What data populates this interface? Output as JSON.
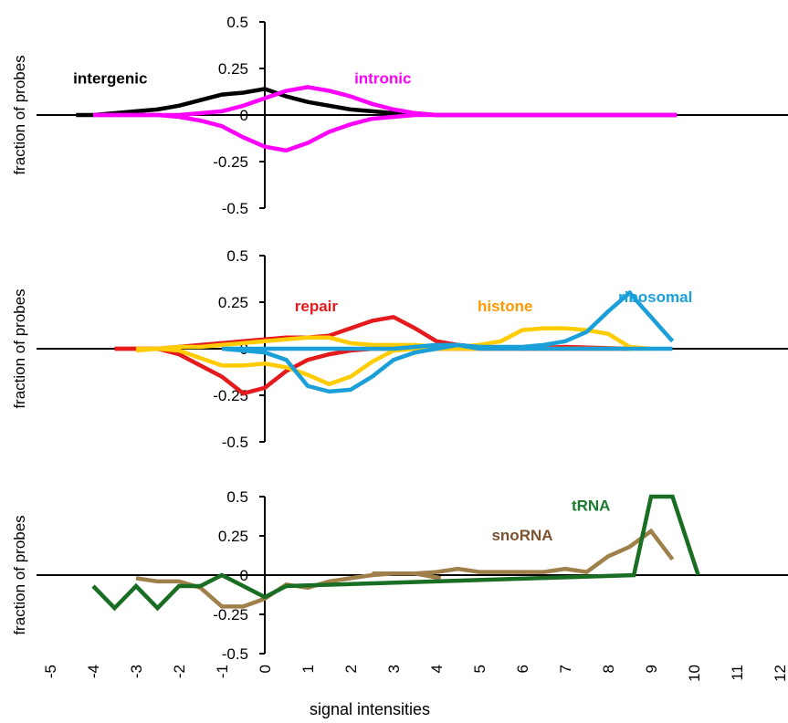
{
  "chart_data": [
    {
      "type": "line",
      "ylabel": "fraction of probes",
      "ylim": [
        -0.5,
        0.5
      ],
      "yticks": [
        {
          "v": 0.5,
          "label": "0.5"
        },
        {
          "v": 0.25,
          "label": "0.25"
        },
        {
          "v": 0,
          "label": "0"
        },
        {
          "v": -0.25,
          "label": "-0.25"
        },
        {
          "v": -0.5,
          "label": "-0.5"
        }
      ],
      "annotations": [
        {
          "text": "intergenic",
          "color": "#000000",
          "x": -3.6,
          "y": 0.17
        },
        {
          "text": "intronic",
          "color": "#ff00ff",
          "x": 2.75,
          "y": 0.17
        }
      ],
      "series": [
        {
          "name": "intergenic",
          "color": "#000000",
          "points": [
            [
              -4.4,
              0
            ],
            [
              -4,
              0
            ],
            [
              -3.5,
              0.01
            ],
            [
              -3,
              0.02
            ],
            [
              -2.5,
              0.03
            ],
            [
              -2,
              0.05
            ],
            [
              -1.5,
              0.08
            ],
            [
              -1,
              0.11
            ],
            [
              -0.5,
              0.12
            ],
            [
              0,
              0.14
            ],
            [
              0.5,
              0.1
            ],
            [
              1,
              0.07
            ],
            [
              1.5,
              0.05
            ],
            [
              2,
              0.03
            ],
            [
              2.5,
              0.02
            ],
            [
              3,
              0.01
            ],
            [
              3.5,
              0.01
            ],
            [
              4,
              0
            ],
            [
              5,
              0
            ],
            [
              6,
              0
            ],
            [
              7,
              0
            ],
            [
              8,
              0
            ],
            [
              9,
              0
            ],
            [
              9.6,
              0
            ]
          ]
        },
        {
          "name": "intronic (+)",
          "color": "#ff00ff",
          "points": [
            [
              -4,
              0
            ],
            [
              -3.5,
              0
            ],
            [
              -3,
              0
            ],
            [
              -2.5,
              0
            ],
            [
              -2,
              0
            ],
            [
              -1.5,
              0.01
            ],
            [
              -1,
              0.02
            ],
            [
              -0.5,
              0.05
            ],
            [
              0,
              0.09
            ],
            [
              0.5,
              0.13
            ],
            [
              1,
              0.15
            ],
            [
              1.5,
              0.13
            ],
            [
              2,
              0.1
            ],
            [
              2.5,
              0.06
            ],
            [
              3,
              0.03
            ],
            [
              3.5,
              0.01
            ],
            [
              4,
              0
            ],
            [
              5,
              0
            ],
            [
              6,
              0
            ],
            [
              7,
              0
            ],
            [
              8,
              0
            ],
            [
              9,
              0
            ],
            [
              9.6,
              0
            ]
          ]
        },
        {
          "name": "intronic (-)",
          "color": "#ff00ff",
          "points": [
            [
              -4,
              0
            ],
            [
              -3.5,
              0
            ],
            [
              -3,
              0
            ],
            [
              -2.5,
              0
            ],
            [
              -2,
              -0.01
            ],
            [
              -1.5,
              -0.03
            ],
            [
              -1,
              -0.06
            ],
            [
              -0.5,
              -0.12
            ],
            [
              0,
              -0.17
            ],
            [
              0.5,
              -0.19
            ],
            [
              1,
              -0.15
            ],
            [
              1.5,
              -0.09
            ],
            [
              2,
              -0.05
            ],
            [
              2.5,
              -0.02
            ],
            [
              3,
              -0.01
            ],
            [
              3.5,
              0
            ],
            [
              4,
              0
            ],
            [
              5,
              0
            ],
            [
              6,
              0
            ],
            [
              7,
              0
            ],
            [
              8,
              0
            ],
            [
              9,
              0
            ],
            [
              9.6,
              0
            ]
          ]
        }
      ]
    },
    {
      "type": "line",
      "ylabel": "fraction of probes",
      "ylim": [
        -0.5,
        0.5
      ],
      "yticks": [
        {
          "v": 0.5,
          "label": "0.5"
        },
        {
          "v": 0.25,
          "label": "0.25"
        },
        {
          "v": 0,
          "label": "0"
        },
        {
          "v": -0.25,
          "label": "-0.25"
        },
        {
          "v": -0.5,
          "label": "-0.5"
        }
      ],
      "annotations": [
        {
          "text": "repair",
          "color": "#e41a1c",
          "x": 1.2,
          "y": 0.2
        },
        {
          "text": "histone",
          "color": "#ff9900",
          "x": 5.6,
          "y": 0.2
        },
        {
          "text": "ribosomal",
          "color": "#1a9fd9",
          "x": 9.1,
          "y": 0.25
        }
      ],
      "series": [
        {
          "name": "repair (+)",
          "color": "#e41a1c",
          "points": [
            [
              -3.5,
              0
            ],
            [
              -3,
              0
            ],
            [
              -2.5,
              0
            ],
            [
              -2,
              0.01
            ],
            [
              -1.5,
              0.02
            ],
            [
              -1,
              0.03
            ],
            [
              -0.5,
              0.04
            ],
            [
              0,
              0.05
            ],
            [
              0.5,
              0.06
            ],
            [
              1,
              0.06
            ],
            [
              1.5,
              0.07
            ],
            [
              2,
              0.11
            ],
            [
              2.5,
              0.15
            ],
            [
              3,
              0.17
            ],
            [
              3.5,
              0.11
            ],
            [
              4,
              0.04
            ],
            [
              4.5,
              0.02
            ],
            [
              5,
              0.01
            ],
            [
              6,
              0
            ],
            [
              7,
              0.01
            ],
            [
              8.5,
              0
            ]
          ]
        },
        {
          "name": "repair (-)",
          "color": "#e41a1c",
          "points": [
            [
              -3.5,
              0
            ],
            [
              -3,
              0
            ],
            [
              -2.5,
              0
            ],
            [
              -2,
              -0.03
            ],
            [
              -1.5,
              -0.09
            ],
            [
              -1,
              -0.15
            ],
            [
              -0.5,
              -0.24
            ],
            [
              0,
              -0.21
            ],
            [
              0.5,
              -0.12
            ],
            [
              1,
              -0.06
            ],
            [
              1.5,
              -0.03
            ],
            [
              2,
              -0.01
            ],
            [
              2.5,
              0
            ],
            [
              3,
              0
            ],
            [
              4,
              0
            ],
            [
              5,
              0
            ],
            [
              6,
              0
            ],
            [
              7,
              0
            ],
            [
              8.5,
              0
            ]
          ]
        },
        {
          "name": "histone (+)",
          "color": "#ffcc00",
          "points": [
            [
              -3,
              -0.01
            ],
            [
              -2.5,
              0
            ],
            [
              -2,
              0.01
            ],
            [
              -1.5,
              0.01
            ],
            [
              -1,
              0.02
            ],
            [
              -0.5,
              0.03
            ],
            [
              0,
              0.04
            ],
            [
              0.5,
              0.05
            ],
            [
              1,
              0.06
            ],
            [
              1.5,
              0.06
            ],
            [
              2,
              0.03
            ],
            [
              2.5,
              0.02
            ],
            [
              3,
              0.02
            ],
            [
              3.5,
              0.02
            ],
            [
              4,
              0.01
            ],
            [
              4.5,
              0.01
            ],
            [
              5,
              0.02
            ],
            [
              5.5,
              0.04
            ],
            [
              6,
              0.1
            ],
            [
              6.5,
              0.11
            ],
            [
              7,
              0.11
            ],
            [
              7.5,
              0.1
            ],
            [
              8,
              0.08
            ],
            [
              8.5,
              0.01
            ],
            [
              9,
              0
            ]
          ]
        },
        {
          "name": "histone (-)",
          "color": "#ffcc00",
          "points": [
            [
              -3,
              0
            ],
            [
              -2.5,
              0
            ],
            [
              -2,
              -0.01
            ],
            [
              -1.5,
              -0.05
            ],
            [
              -1,
              -0.09
            ],
            [
              -0.5,
              -0.09
            ],
            [
              0,
              -0.08
            ],
            [
              0.5,
              -0.1
            ],
            [
              1,
              -0.14
            ],
            [
              1.5,
              -0.19
            ],
            [
              2,
              -0.15
            ],
            [
              2.5,
              -0.07
            ],
            [
              3,
              -0.01
            ],
            [
              3.5,
              0
            ],
            [
              4,
              0
            ],
            [
              5,
              0
            ],
            [
              6,
              0
            ],
            [
              7,
              0
            ],
            [
              8,
              0
            ],
            [
              9,
              0
            ]
          ]
        },
        {
          "name": "ribosomal (+)",
          "color": "#1a9fd9",
          "points": [
            [
              -1,
              0
            ],
            [
              0,
              0
            ],
            [
              1,
              0
            ],
            [
              2,
              0
            ],
            [
              3,
              0
            ],
            [
              3.5,
              0.01
            ],
            [
              4,
              0.02
            ],
            [
              4.5,
              0.02
            ],
            [
              5,
              0.01
            ],
            [
              5.5,
              0.01
            ],
            [
              6,
              0.01
            ],
            [
              6.5,
              0.02
            ],
            [
              7,
              0.04
            ],
            [
              7.5,
              0.09
            ],
            [
              8,
              0.2
            ],
            [
              8.5,
              0.3
            ],
            [
              9,
              0.17
            ],
            [
              9.5,
              0.04
            ]
          ]
        },
        {
          "name": "ribosomal (-)",
          "color": "#1a9fd9",
          "points": [
            [
              -1,
              0
            ],
            [
              -0.5,
              -0.01
            ],
            [
              0,
              -0.02
            ],
            [
              0.5,
              -0.06
            ],
            [
              1,
              -0.2
            ],
            [
              1.5,
              -0.23
            ],
            [
              2,
              -0.22
            ],
            [
              2.5,
              -0.15
            ],
            [
              3,
              -0.06
            ],
            [
              3.5,
              -0.02
            ],
            [
              4,
              0
            ],
            [
              4.5,
              0.02
            ],
            [
              5,
              0
            ],
            [
              6,
              0
            ],
            [
              7,
              0
            ],
            [
              8,
              0
            ],
            [
              9,
              0
            ],
            [
              9.5,
              0
            ]
          ]
        }
      ]
    },
    {
      "type": "line",
      "ylabel": "fraction of probes",
      "ylim": [
        -0.5,
        0.5
      ],
      "yticks": [
        {
          "v": 0.5,
          "label": "0.5"
        },
        {
          "v": 0.25,
          "label": "0.25"
        },
        {
          "v": 0,
          "label": "0"
        },
        {
          "v": -0.25,
          "label": "-0.25"
        },
        {
          "v": -0.5,
          "label": "-0.5"
        }
      ],
      "annotations": [
        {
          "text": "tRNA",
          "color": "#1a7a2e",
          "x": 7.6,
          "y": 0.41
        },
        {
          "text": "snoRNA",
          "color": "#7a5230",
          "x": 6.0,
          "y": 0.22
        }
      ],
      "series": [
        {
          "name": "snoRNA",
          "color": "#a0804a",
          "points": [
            [
              -3,
              -0.02
            ],
            [
              -2.5,
              -0.04
            ],
            [
              -2,
              -0.04
            ],
            [
              -1.5,
              -0.08
            ],
            [
              -1,
              -0.2
            ],
            [
              -0.5,
              -0.2
            ],
            [
              0,
              -0.15
            ],
            [
              0.5,
              -0.06
            ],
            [
              1,
              -0.08
            ],
            [
              1.5,
              -0.04
            ],
            [
              2,
              -0.02
            ],
            [
              2.5,
              0
            ],
            [
              3,
              0.01
            ],
            [
              3.5,
              0.01
            ],
            [
              4,
              0.02
            ],
            [
              4.5,
              0.04
            ],
            [
              5,
              0.02
            ],
            [
              5.5,
              0.02
            ],
            [
              6,
              0.02
            ],
            [
              6.5,
              0.02
            ],
            [
              7,
              0.04
            ],
            [
              7.5,
              0.02
            ],
            [
              8,
              0.12
            ],
            [
              8.5,
              0.18
            ],
            [
              9,
              0.28
            ],
            [
              9.5,
              0.1
            ]
          ]
        },
        {
          "name": "snoRNA tail",
          "color": "#a0804a",
          "points": [
            [
              2.5,
              0.01
            ],
            [
              3,
              0.01
            ],
            [
              3.5,
              0.01
            ],
            [
              4.1,
              -0.02
            ]
          ]
        },
        {
          "name": "tRNA",
          "color": "#1a6e23",
          "points": [
            [
              -4,
              -0.07
            ],
            [
              -3.5,
              -0.21
            ],
            [
              -3,
              -0.07
            ],
            [
              -2.5,
              -0.21
            ],
            [
              -2,
              -0.07
            ],
            [
              -1.5,
              -0.07
            ],
            [
              -1,
              0
            ],
            [
              -0.5,
              -0.07
            ],
            [
              0,
              -0.14
            ],
            [
              0.5,
              -0.07
            ],
            [
              8.6,
              0
            ],
            [
              9,
              0.5
            ],
            [
              9.5,
              0.5
            ],
            [
              10.1,
              0
            ]
          ]
        }
      ]
    }
  ],
  "xaxis": {
    "label": "signal intensities",
    "xlim": [
      -5,
      12
    ],
    "ticks": [
      "-5",
      "-4",
      "-3",
      "-2",
      "-1",
      "0",
      "1",
      "2",
      "3",
      "4",
      "5",
      "6",
      "7",
      "8",
      "9",
      "10",
      "11",
      "12"
    ]
  }
}
